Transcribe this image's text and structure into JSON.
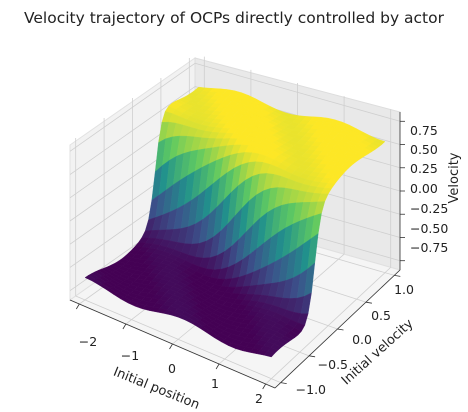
{
  "chart_data": {
    "type": "surface3d",
    "title": "Velocity trajectory of OCPs directly controlled by actor",
    "xlabel": "Initial position",
    "ylabel": "Initial velocity",
    "zlabel": "Velocity",
    "xlim": [
      -2.2,
      2.2
    ],
    "ylim": [
      -1.1,
      1.1
    ],
    "zlim": [
      -0.85,
      0.85
    ],
    "x_ticks": [
      "−2",
      "−1",
      "0",
      "1",
      "2"
    ],
    "y_ticks": [
      "−1.0",
      "−0.5",
      "0.0",
      "0.5",
      "1.0"
    ],
    "z_ticks": [
      "−0.75",
      "−0.50",
      "−0.25",
      "0.00",
      "0.25",
      "0.50",
      "0.75"
    ],
    "colormap": "viridis",
    "grid": true,
    "x": [
      -2.0,
      2.0
    ],
    "y": [
      -1.0,
      1.0
    ],
    "z_low_plateau": -0.65,
    "z_high_plateau": 0.6,
    "step_along": "initial velocity",
    "step_at_y": 0.0
  }
}
